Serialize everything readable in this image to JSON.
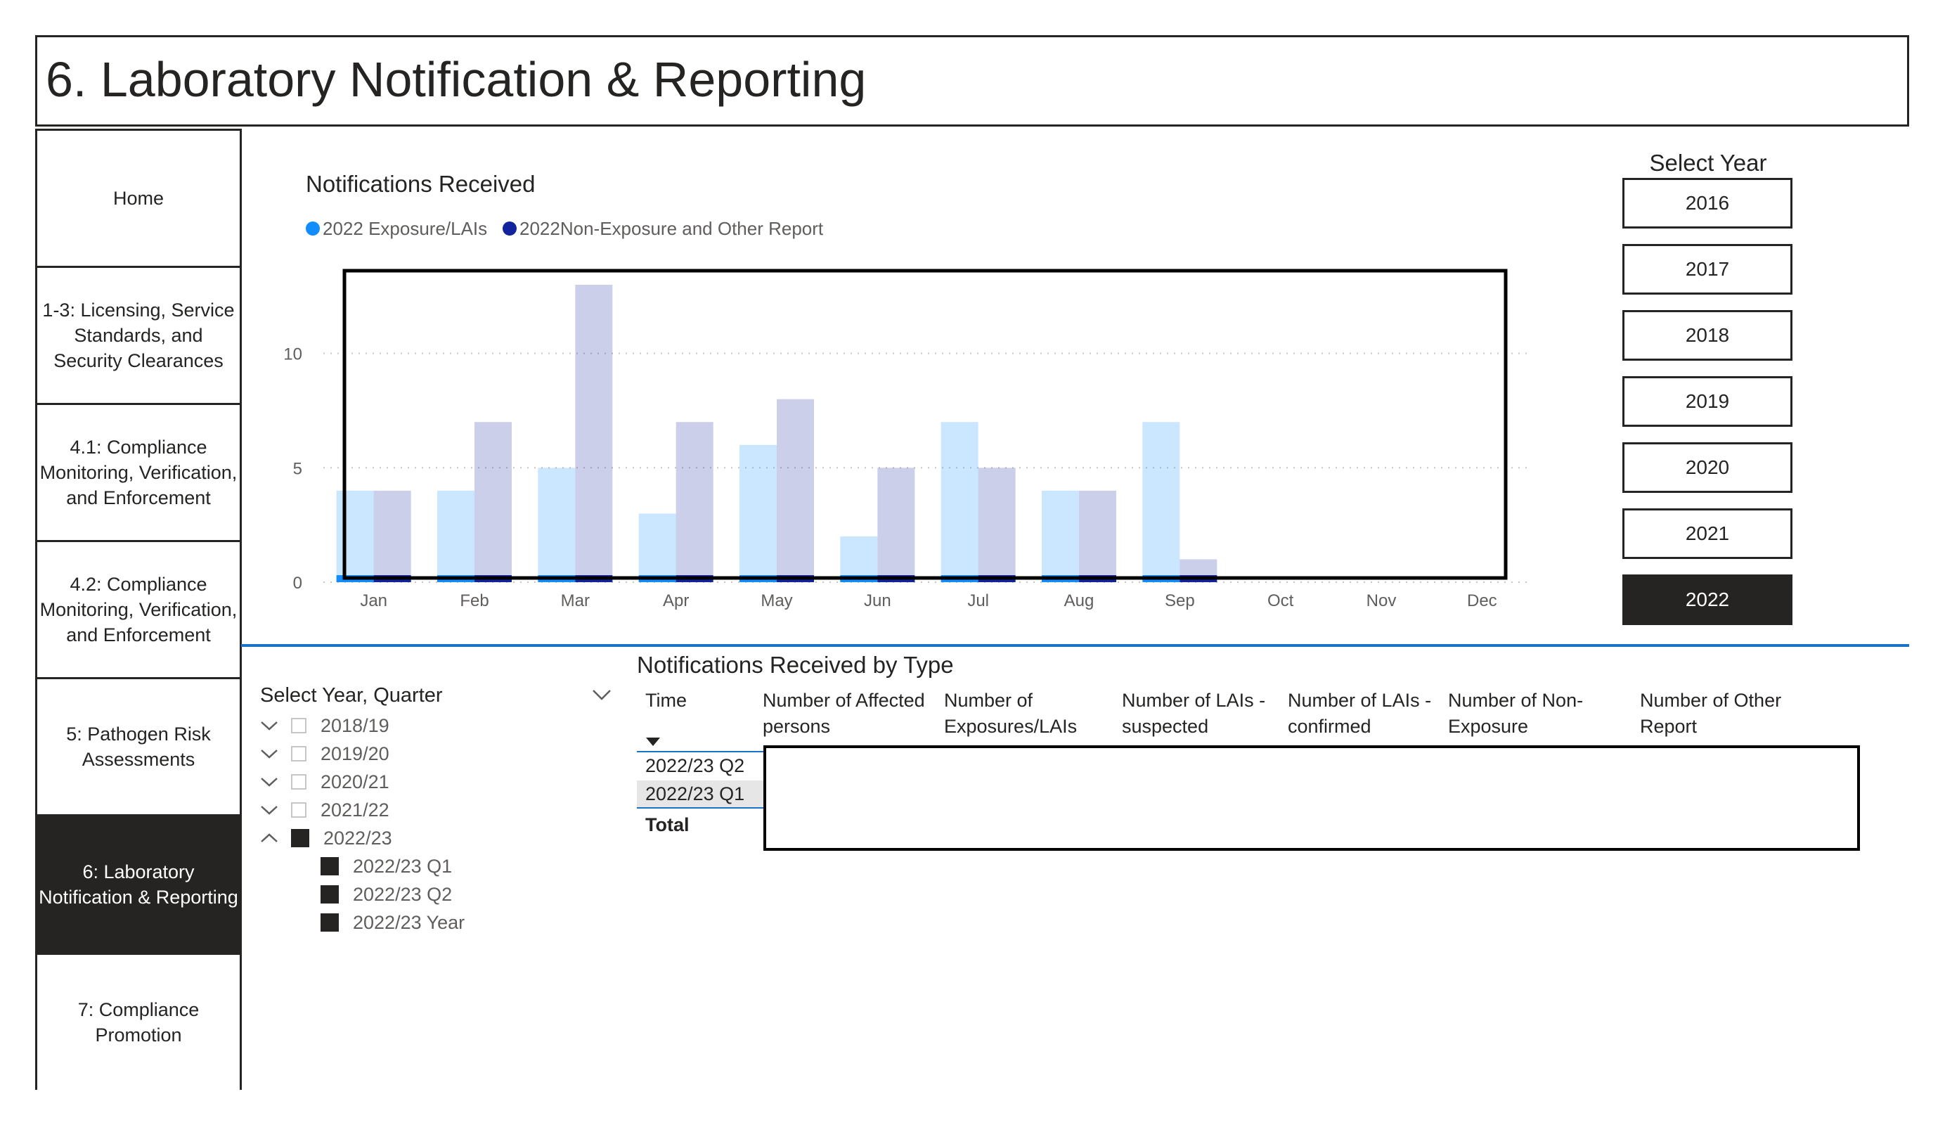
{
  "header": {
    "title": "6. Laboratory Notification & Reporting"
  },
  "nav": {
    "items": [
      {
        "label": "Home"
      },
      {
        "label": "1-3: Licensing, Service Standards, and Security Clearances"
      },
      {
        "label": "4.1: Compliance Monitoring, Verification, and Enforcement"
      },
      {
        "label": "4.2: Compliance Monitoring, Verification, and Enforcement"
      },
      {
        "label": "5: Pathogen Risk Assessments"
      },
      {
        "label": "6: Laboratory Notification & Reporting",
        "active": true
      },
      {
        "label": "7: Compliance Promotion"
      }
    ]
  },
  "chart": {
    "title": "Notifications Received",
    "legend": [
      {
        "label": "2022 Exposure/LAIs",
        "color": "#118dff"
      },
      {
        "label": "2022Non-Exposure and Other Report",
        "color": "#12239e"
      }
    ]
  },
  "chart_data": {
    "type": "bar",
    "title": "Notifications Received",
    "categories": [
      "Jan",
      "Feb",
      "Mar",
      "Apr",
      "May",
      "Jun",
      "Jul",
      "Aug",
      "Sep",
      "Oct",
      "Nov",
      "Dec"
    ],
    "series": [
      {
        "name": "2022 Exposure/LAIs",
        "color": "#118dff",
        "values": [
          4,
          4,
          5,
          3,
          6,
          2,
          7,
          4,
          7,
          null,
          null,
          null
        ]
      },
      {
        "name": "2022Non-Exposure and Other Report",
        "color": "#12239e",
        "values": [
          4,
          7,
          13,
          7,
          8,
          5,
          5,
          4,
          1,
          null,
          null,
          null
        ]
      }
    ],
    "yticks": [
      "0",
      "5",
      "10"
    ],
    "ylim": [
      0,
      13
    ],
    "grid": true,
    "legend_position": "top-left"
  },
  "year_slicer": {
    "title": "Select Year",
    "options": [
      "2016",
      "2017",
      "2018",
      "2019",
      "2020",
      "2021",
      "2022"
    ],
    "selected": "2022"
  },
  "quarter_slicer": {
    "title": "Select Year, Quarter",
    "items": [
      {
        "label": "2018/19",
        "level": 0,
        "expanded": false,
        "checked": false
      },
      {
        "label": "2019/20",
        "level": 0,
        "expanded": false,
        "checked": false
      },
      {
        "label": "2020/21",
        "level": 0,
        "expanded": false,
        "checked": false
      },
      {
        "label": "2021/22",
        "level": 0,
        "expanded": false,
        "checked": false
      },
      {
        "label": "2022/23",
        "level": 0,
        "expanded": true,
        "checked": true
      },
      {
        "label": "2022/23 Q1",
        "level": 1,
        "checked": true
      },
      {
        "label": "2022/23 Q2",
        "level": 1,
        "checked": true
      },
      {
        "label": "2022/23 Year",
        "level": 1,
        "checked": true
      }
    ]
  },
  "table": {
    "title": "Notifications Received by Type",
    "columns": [
      "Time",
      "Number of Affected persons",
      "Number of Exposures/LAIs",
      "Number of LAIs - suspected",
      "Number of LAIs - confirmed",
      "Number of Non-Exposure",
      "Number of Other Report"
    ],
    "rows": [
      "2022/23 Q2",
      "2022/23 Q1"
    ],
    "total_label": "Total"
  }
}
